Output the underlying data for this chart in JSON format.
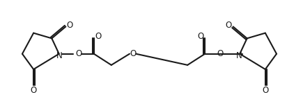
{
  "background_color": "#ffffff",
  "line_color": "#1a1a1a",
  "line_width": 1.5,
  "font_size": 8.5,
  "figsize": [
    4.12,
    1.4
  ],
  "dpi": 100,
  "xlim": [
    0,
    10
  ],
  "ylim": [
    0.2,
    3.8
  ]
}
